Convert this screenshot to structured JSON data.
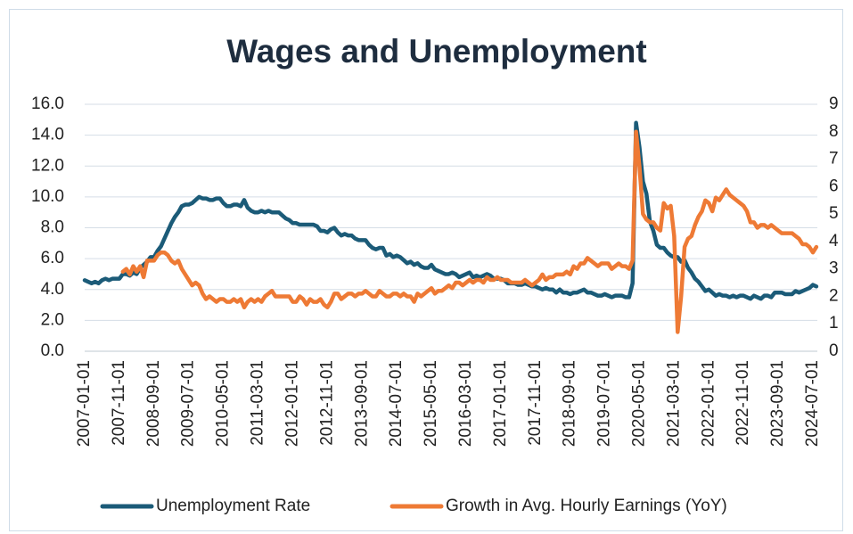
{
  "chart_data": {
    "type": "line",
    "title": "Wages and Unemployment",
    "categories": [
      "2007-01-01",
      null,
      null,
      null,
      null,
      null,
      null,
      null,
      null,
      null,
      "2007-11-01",
      null,
      null,
      null,
      null,
      null,
      null,
      null,
      null,
      null,
      "2008-09-01",
      null,
      null,
      null,
      null,
      null,
      null,
      null,
      null,
      null,
      "2009-07-01",
      null,
      null,
      null,
      null,
      null,
      null,
      null,
      null,
      null,
      "2010-05-01",
      null,
      null,
      null,
      null,
      null,
      null,
      null,
      null,
      null,
      "2011-03-01",
      null,
      null,
      null,
      null,
      null,
      null,
      null,
      null,
      null,
      "2012-01-01",
      null,
      null,
      null,
      null,
      null,
      null,
      null,
      null,
      null,
      "2012-11-01",
      null,
      null,
      null,
      null,
      null,
      null,
      null,
      null,
      null,
      "2013-09-01",
      null,
      null,
      null,
      null,
      null,
      null,
      null,
      null,
      null,
      "2014-07-01",
      null,
      null,
      null,
      null,
      null,
      null,
      null,
      null,
      null,
      "2015-05-01",
      null,
      null,
      null,
      null,
      null,
      null,
      null,
      null,
      null,
      "2016-03-01",
      null,
      null,
      null,
      null,
      null,
      null,
      null,
      null,
      null,
      "2017-01-01",
      null,
      null,
      null,
      null,
      null,
      null,
      null,
      null,
      null,
      "2017-11-01",
      null,
      null,
      null,
      null,
      null,
      null,
      null,
      null,
      null,
      "2018-09-01",
      null,
      null,
      null,
      null,
      null,
      null,
      null,
      null,
      null,
      "2019-07-01",
      null,
      null,
      null,
      null,
      null,
      null,
      null,
      null,
      null,
      "2020-05-01",
      null,
      null,
      null,
      null,
      null,
      null,
      null,
      null,
      null,
      "2021-03-01",
      null,
      null,
      null,
      null,
      null,
      null,
      null,
      null,
      null,
      "2022-01-01",
      null,
      null,
      null,
      null,
      null,
      null,
      null,
      null,
      null,
      "2022-11-01",
      null,
      null,
      null,
      null,
      null,
      null,
      null,
      null,
      null,
      "2023-09-01",
      null,
      null,
      null,
      null,
      null,
      null,
      null,
      null,
      null,
      "2024-07-01",
      null
    ],
    "series": [
      {
        "name": "Unemployment Rate",
        "color": "#1b5b78",
        "values": [
          4.6,
          4.5,
          4.4,
          4.5,
          4.4,
          4.6,
          4.7,
          4.6,
          4.7,
          4.7,
          4.7,
          5.0,
          5.0,
          4.9,
          5.1,
          5.0,
          5.4,
          5.6,
          5.8,
          6.1,
          6.1,
          6.5,
          6.8,
          7.3,
          7.8,
          8.3,
          8.7,
          9.0,
          9.4,
          9.5,
          9.5,
          9.6,
          9.8,
          10.0,
          9.9,
          9.9,
          9.8,
          9.8,
          9.9,
          9.9,
          9.6,
          9.4,
          9.4,
          9.5,
          9.5,
          9.4,
          9.8,
          9.3,
          9.1,
          9.0,
          9.0,
          9.1,
          9.0,
          9.1,
          9.0,
          9.0,
          9.0,
          8.8,
          8.6,
          8.5,
          8.3,
          8.3,
          8.2,
          8.2,
          8.2,
          8.2,
          8.2,
          8.1,
          7.8,
          7.8,
          7.7,
          7.9,
          8.0,
          7.7,
          7.5,
          7.6,
          7.5,
          7.5,
          7.3,
          7.2,
          7.2,
          7.2,
          6.9,
          6.7,
          6.6,
          6.7,
          6.7,
          6.2,
          6.3,
          6.1,
          6.2,
          6.1,
          5.9,
          5.7,
          5.8,
          5.6,
          5.7,
          5.5,
          5.4,
          5.4,
          5.6,
          5.3,
          5.2,
          5.1,
          5.0,
          5.0,
          5.1,
          5.0,
          4.8,
          4.9,
          5.0,
          5.1,
          4.8,
          4.9,
          4.8,
          4.9,
          5.0,
          4.9,
          4.7,
          4.7,
          4.7,
          4.6,
          4.4,
          4.4,
          4.4,
          4.3,
          4.3,
          4.4,
          4.3,
          4.2,
          4.2,
          4.1,
          4.0,
          4.1,
          4.0,
          4.0,
          3.8,
          4.0,
          3.8,
          3.8,
          3.7,
          3.8,
          3.8,
          3.9,
          4.0,
          3.8,
          3.8,
          3.7,
          3.6,
          3.6,
          3.7,
          3.6,
          3.5,
          3.6,
          3.6,
          3.6,
          3.5,
          3.5,
          4.4,
          14.8,
          13.2,
          11.0,
          10.2,
          8.4,
          7.8,
          6.9,
          6.7,
          6.7,
          6.4,
          6.2,
          6.1,
          6.1,
          5.8,
          5.9,
          5.4,
          5.1,
          4.7,
          4.5,
          4.2,
          3.9,
          4.0,
          3.8,
          3.6,
          3.7,
          3.6,
          3.6,
          3.5,
          3.6,
          3.5,
          3.6,
          3.6,
          3.5,
          3.4,
          3.6,
          3.5,
          3.4,
          3.6,
          3.6,
          3.5,
          3.8,
          3.8,
          3.8,
          3.7,
          3.7,
          3.7,
          3.9,
          3.8,
          3.9,
          4.0,
          4.1,
          4.3,
          4.2
        ]
      },
      {
        "name": "Growth in Avg. Hourly Earnings (YoY)",
        "color": "#ee7a35",
        "axis": "y2",
        "values": [
          null,
          null,
          null,
          null,
          null,
          null,
          null,
          null,
          null,
          null,
          null,
          2.9,
          3.0,
          2.8,
          3.1,
          2.9,
          3.1,
          2.7,
          3.3,
          3.3,
          3.3,
          3.5,
          3.6,
          3.6,
          3.5,
          3.3,
          3.2,
          3.3,
          3.0,
          2.8,
          2.6,
          2.4,
          2.5,
          2.4,
          2.1,
          1.9,
          2.0,
          1.9,
          1.8,
          1.9,
          1.9,
          1.8,
          1.8,
          1.9,
          1.8,
          1.9,
          1.6,
          1.8,
          1.9,
          1.8,
          1.9,
          1.8,
          2.0,
          2.1,
          2.2,
          2.0,
          2.0,
          2.0,
          2.0,
          2.0,
          1.8,
          1.8,
          2.0,
          1.9,
          1.7,
          1.9,
          1.8,
          1.8,
          1.9,
          1.7,
          1.6,
          1.8,
          2.1,
          2.1,
          1.9,
          2.0,
          2.1,
          2.1,
          2.0,
          2.1,
          2.1,
          2.2,
          2.1,
          2.0,
          2.0,
          2.2,
          2.1,
          2.0,
          2.0,
          2.1,
          2.1,
          2.0,
          2.1,
          2.0,
          2.0,
          1.8,
          2.1,
          2.0,
          2.1,
          2.2,
          2.3,
          2.1,
          2.2,
          2.2,
          2.3,
          2.4,
          2.3,
          2.5,
          2.5,
          2.4,
          2.5,
          2.6,
          2.5,
          2.6,
          2.6,
          2.5,
          2.7,
          2.6,
          2.6,
          2.7,
          2.6,
          2.6,
          2.6,
          2.5,
          2.5,
          2.5,
          2.5,
          2.6,
          2.5,
          2.4,
          2.5,
          2.6,
          2.8,
          2.6,
          2.7,
          2.7,
          2.8,
          2.8,
          2.8,
          2.9,
          2.8,
          3.1,
          3.0,
          3.2,
          3.2,
          3.4,
          3.3,
          3.2,
          3.1,
          3.2,
          3.2,
          3.2,
          3.0,
          3.1,
          3.2,
          3.1,
          3.1,
          3.0,
          3.3,
          8.0,
          6.7,
          5.0,
          4.8,
          4.7,
          4.7,
          4.5,
          4.4,
          5.4,
          5.2,
          5.3,
          4.2,
          0.7,
          2.0,
          3.8,
          4.1,
          4.2,
          4.6,
          4.9,
          5.1,
          5.5,
          5.4,
          5.1,
          5.6,
          5.5,
          5.7,
          5.9,
          5.7,
          5.6,
          5.5,
          5.4,
          5.3,
          5.1,
          4.7,
          4.7,
          4.5,
          4.6,
          4.6,
          4.5,
          4.6,
          4.5,
          4.4,
          4.3,
          4.3,
          4.3,
          4.3,
          4.2,
          4.1,
          3.9,
          3.9,
          3.8,
          3.6,
          3.8
        ]
      }
    ],
    "ylim": [
      0,
      16
    ],
    "yticks": [
      {
        "value": 0,
        "label": "0.0"
      },
      {
        "value": 2,
        "label": "2.0"
      },
      {
        "value": 4,
        "label": "4.0"
      },
      {
        "value": 6,
        "label": "6.0"
      },
      {
        "value": 8,
        "label": "8.0"
      },
      {
        "value": 10,
        "label": "10.0"
      },
      {
        "value": 12,
        "label": "12.0"
      },
      {
        "value": 14,
        "label": "14.0"
      },
      {
        "value": 16,
        "label": "16.0"
      }
    ],
    "y2lim": [
      0,
      9
    ],
    "y2ticks": [
      0,
      1,
      2,
      3,
      4,
      5,
      6,
      7,
      8,
      9
    ],
    "grid": true,
    "legend": "bottom"
  }
}
